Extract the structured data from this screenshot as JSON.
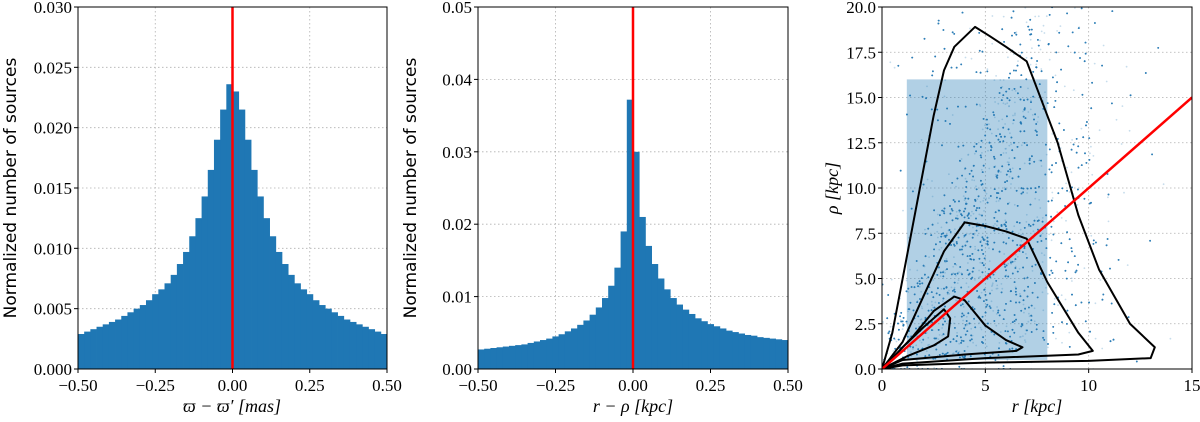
{
  "colors": {
    "bar": "#1f77b4",
    "ref_line": "#ff0000",
    "contour": "#000000",
    "grid": "#b0b0b0"
  },
  "chart_data": [
    {
      "type": "bar",
      "title": "",
      "xlabel": "ϖ − ϖ′ [mas]",
      "ylabel": "Normalized number of sources",
      "xlim": [
        -0.5,
        0.5
      ],
      "ylim": [
        0,
        0.03
      ],
      "xticks": [
        "−0.50",
        "−0.25",
        "0.00",
        "0.25",
        "0.50"
      ],
      "xtick_values": [
        -0.5,
        -0.25,
        0,
        0.25,
        0.5
      ],
      "yticks": [
        "0.000",
        "0.005",
        "0.010",
        "0.015",
        "0.020",
        "0.025",
        "0.030"
      ],
      "ytick_values": [
        0,
        0.005,
        0.01,
        0.015,
        0.02,
        0.025,
        0.03
      ],
      "grid": true,
      "bin_width": 0.02,
      "bin_centers_start": -0.49,
      "values": [
        0.0029,
        0.0031,
        0.0033,
        0.0035,
        0.0037,
        0.0039,
        0.0041,
        0.0044,
        0.0047,
        0.005,
        0.0053,
        0.0057,
        0.0062,
        0.0066,
        0.0071,
        0.0078,
        0.0087,
        0.0097,
        0.011,
        0.0125,
        0.0143,
        0.0165,
        0.019,
        0.0215,
        0.0236,
        0.023,
        0.0215,
        0.019,
        0.0165,
        0.0143,
        0.0125,
        0.011,
        0.0097,
        0.0087,
        0.0078,
        0.0071,
        0.0066,
        0.0062,
        0.0057,
        0.0053,
        0.005,
        0.0047,
        0.0044,
        0.0041,
        0.0039,
        0.0037,
        0.0035,
        0.0033,
        0.0031,
        0.0029
      ],
      "reference_line_x": 0
    },
    {
      "type": "bar",
      "title": "",
      "xlabel": "r − ρ [kpc]",
      "ylabel": "Normalized number of sources",
      "xlim": [
        -0.5,
        0.5
      ],
      "ylim": [
        0,
        0.05
      ],
      "xticks": [
        "−0.50",
        "−0.25",
        "0.00",
        "0.25",
        "0.50"
      ],
      "xtick_values": [
        -0.5,
        -0.25,
        0,
        0.25,
        0.5
      ],
      "yticks": [
        "0.00",
        "0.01",
        "0.02",
        "0.03",
        "0.04",
        "0.05"
      ],
      "ytick_values": [
        0,
        0.01,
        0.02,
        0.03,
        0.04,
        0.05
      ],
      "grid": true,
      "bin_width": 0.02,
      "bin_centers_start": -0.49,
      "values": [
        0.0027,
        0.0028,
        0.0029,
        0.003,
        0.0031,
        0.0032,
        0.0033,
        0.0034,
        0.0036,
        0.0038,
        0.004,
        0.0042,
        0.0045,
        0.0048,
        0.0052,
        0.0056,
        0.0061,
        0.0067,
        0.0075,
        0.0085,
        0.0098,
        0.0115,
        0.014,
        0.019,
        0.0372,
        0.03,
        0.021,
        0.017,
        0.0145,
        0.0125,
        0.011,
        0.0098,
        0.0089,
        0.0082,
        0.0076,
        0.007,
        0.0066,
        0.0062,
        0.0059,
        0.0056,
        0.0053,
        0.0051,
        0.0049,
        0.0047,
        0.0046,
        0.0044,
        0.0043,
        0.0042,
        0.0041,
        0.004
      ],
      "reference_line_x": 0
    },
    {
      "type": "scatter",
      "title": "",
      "xlabel": "r [kpc]",
      "ylabel": "ρ [kpc]",
      "xlim": [
        0,
        15
      ],
      "ylim": [
        0,
        20
      ],
      "xticks": [
        "0",
        "5",
        "10",
        "15"
      ],
      "xtick_values": [
        0,
        5,
        10,
        15
      ],
      "yticks": [
        "0.0",
        "2.5",
        "5.0",
        "7.5",
        "10.0",
        "12.5",
        "15.0",
        "17.5",
        "20.0"
      ],
      "ytick_values": [
        0,
        2.5,
        5,
        7.5,
        10,
        12.5,
        15,
        17.5,
        20
      ],
      "grid": true,
      "reference_line": {
        "x": [
          0,
          15
        ],
        "y": [
          0,
          15
        ]
      },
      "contours": [
        [
          [
            0,
            0
          ],
          [
            0.5,
            2
          ],
          [
            1,
            5
          ],
          [
            1.5,
            8
          ],
          [
            2,
            11
          ],
          [
            2.5,
            14
          ],
          [
            3,
            16.5
          ],
          [
            3.5,
            17.8
          ],
          [
            4.5,
            18.9
          ],
          [
            5.2,
            18.4
          ],
          [
            6,
            17.8
          ],
          [
            7,
            17.0
          ],
          [
            7.5,
            15.5
          ],
          [
            8.5,
            12.5
          ],
          [
            9.5,
            8.5
          ],
          [
            10.5,
            5.5
          ],
          [
            12,
            2.5
          ],
          [
            13.2,
            1.2
          ],
          [
            13,
            0.6
          ],
          [
            10,
            0.45
          ],
          [
            5,
            0.35
          ],
          [
            1,
            0.2
          ],
          [
            0,
            0
          ]
        ],
        [
          [
            0,
            0
          ],
          [
            1,
            1.5
          ],
          [
            2,
            4
          ],
          [
            3,
            6.5
          ],
          [
            4,
            8.1
          ],
          [
            5,
            7.9
          ],
          [
            6,
            7.6
          ],
          [
            7,
            7.2
          ],
          [
            8,
            4.8
          ],
          [
            9.5,
            2
          ],
          [
            10.2,
            1.0
          ],
          [
            9.5,
            0.8
          ],
          [
            5,
            0.6
          ],
          [
            1,
            0.3
          ],
          [
            0,
            0
          ]
        ],
        [
          [
            0,
            0
          ],
          [
            1.5,
            1.8
          ],
          [
            2.5,
            3.2
          ],
          [
            3.5,
            4.0
          ],
          [
            4,
            3.8
          ],
          [
            5,
            2.4
          ],
          [
            6,
            1.6
          ],
          [
            6.8,
            1.2
          ],
          [
            6.5,
            1.0
          ],
          [
            4,
            0.8
          ],
          [
            1,
            0.5
          ],
          [
            0,
            0
          ]
        ],
        [
          [
            0,
            0
          ],
          [
            1,
            1.2
          ],
          [
            2,
            2.3
          ],
          [
            3,
            3.3
          ],
          [
            3.3,
            2.8
          ],
          [
            3.2,
            1.8
          ],
          [
            2.5,
            1.3
          ],
          [
            1.2,
            0.7
          ],
          [
            0,
            0
          ]
        ]
      ]
    }
  ]
}
